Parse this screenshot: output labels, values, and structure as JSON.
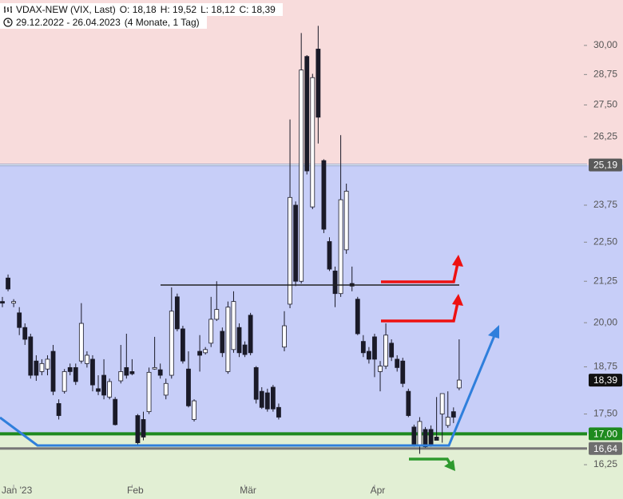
{
  "chart_data": {
    "type": "candlestick",
    "title": "VDAX-NEW (VIX, Last)",
    "quote": [
      "O: 18,18",
      "H: 19,52",
      "L: 18,12",
      "C: 18,39"
    ],
    "period": "29.12.2022 - 26.04.2023",
    "duration": "(4 Monate, 1 Tag)",
    "log_scale": true,
    "ylim": [
      15.82,
      32.06
    ],
    "yticks": [
      {
        "value": 16.25,
        "label": "16,25"
      },
      {
        "value": 17.5,
        "label": "17,50"
      },
      {
        "value": 18.75,
        "label": "18,75"
      },
      {
        "value": 20,
        "label": "20,00"
      },
      {
        "value": 21.25,
        "label": "21,25"
      },
      {
        "value": 22.5,
        "label": "22,50"
      },
      {
        "value": 23.75,
        "label": "23,75"
      },
      {
        "value": 26.25,
        "label": "26,25"
      },
      {
        "value": 27.5,
        "label": "27,50"
      },
      {
        "value": 28.75,
        "label": "28,75"
      },
      {
        "value": 30,
        "label": "30,00"
      }
    ],
    "levels": [
      {
        "value": 25.19,
        "label": "25,19",
        "color": "#5a5a5a",
        "line_color": "#8fa0c8"
      },
      {
        "value": 17.0,
        "label": "17,00",
        "color": "#1e8a1e",
        "line_color": "#1e8a1e"
      },
      {
        "value": 16.64,
        "label": "16,64",
        "color": "#6e6e6e",
        "line_color": "#777777"
      }
    ],
    "last_price": {
      "value": 18.39,
      "label": "18,39",
      "color": "#111111"
    },
    "zone_colors": [
      "#f8dcdc",
      "#c7cef8",
      "#e2efd4"
    ],
    "up_color": "#ffffff",
    "down_color": "#1a1a28",
    "categories": [
      null,
      null,
      "Jan '23",
      null,
      null,
      null,
      null,
      null,
      null,
      null,
      null,
      null,
      null,
      null,
      null,
      null,
      null,
      null,
      null,
      null,
      null,
      null,
      null,
      "Feb",
      null,
      null,
      null,
      null,
      null,
      null,
      null,
      null,
      null,
      null,
      null,
      null,
      null,
      null,
      null,
      null,
      null,
      null,
      null,
      "Mär",
      null,
      null,
      null,
      null,
      null,
      null,
      null,
      null,
      null,
      null,
      null,
      null,
      null,
      null,
      null,
      null,
      null,
      null,
      null,
      null,
      null,
      null,
      "Apr",
      null,
      null,
      null,
      null,
      null,
      null,
      null,
      null,
      null,
      null,
      null,
      null,
      null,
      null,
      null
    ],
    "open": [
      20.63,
      21.35,
      20.58,
      20.29,
      19.86,
      19.59,
      18.91,
      18.62,
      18.69,
      19.18,
      17.77,
      18.09,
      18.73,
      18.73,
      18.91,
      18.84,
      18.96,
      18.16,
      18.52,
      17.94,
      17.88,
      18.37,
      18.73,
      18.62,
      17.46,
      17.36,
      17.56,
      18.69,
      18.67,
      17.99,
      18.52,
      20.77,
      19.82,
      18.69,
      17.36,
      19.18,
      19.14,
      19.41,
      20.1,
      19.75,
      18.62,
      19.23,
      19.86,
      19.36,
      20.22,
      18.73,
      18.09,
      18.05,
      18.2,
      17.67,
      19.3,
      20.55,
      23.75,
      21.25,
      29.52,
      23.69,
      29.84,
      25.35,
      22.52,
      21.57,
      20.87,
      22.25,
      21.18,
      20.7,
      19.46,
      19.18,
      19.59,
      18.62,
      18.77,
      19.41,
      18.96,
      18.91,
      18.09,
      17.17,
      16.72,
      17.11,
      17.11,
      16.92,
      17.5,
      17.21,
      17.56,
      18.18
    ],
    "high": [
      20.77,
      21.46,
      20.7,
      20.46,
      19.98,
      19.68,
      19.07,
      18.96,
      19.07,
      19.36,
      17.88,
      18.69,
      18.84,
      18.84,
      20.58,
      19.18,
      19.07,
      18.52,
      18.96,
      18.43,
      17.94,
      19.36,
      19.68,
      18.96,
      17.5,
      17.56,
      18.73,
      19.59,
      18.84,
      18.43,
      21.06,
      20.87,
      19.91,
      19.18,
      17.88,
      19.64,
      19.3,
      20.77,
      21.25,
      19.86,
      20.63,
      20.94,
      19.98,
      19.46,
      20.29,
      18.77,
      18.2,
      18.16,
      18.26,
      17.77,
      20.34,
      26.92,
      23.88,
      30.55,
      29.58,
      28.78,
      30.87,
      25.4,
      22.66,
      21.71,
      26.31,
      24.51,
      21.71,
      20.77,
      19.64,
      19.3,
      19.68,
      18.91,
      19.98,
      19.52,
      19.07,
      19.0,
      18.16,
      17.23,
      17.42,
      17.17,
      17.21,
      17.94,
      18.03,
      18.09,
      17.67,
      19.52
    ],
    "low": [
      20.46,
      20.94,
      20.46,
      19.64,
      19.36,
      18.43,
      18.37,
      18.52,
      18.52,
      17.99,
      17.36,
      18.03,
      18.52,
      18.26,
      18.84,
      18.73,
      18.09,
      17.99,
      17.88,
      17.88,
      17.21,
      18.3,
      18.43,
      18.52,
      16.74,
      16.84,
      17.5,
      18.67,
      18.43,
      17.88,
      18.43,
      19.75,
      18.84,
      17.67,
      17.31,
      18.62,
      19.09,
      19.3,
      20.05,
      19.02,
      18.56,
      19.14,
      19.02,
      19.02,
      19.07,
      17.77,
      17.63,
      17.56,
      17.56,
      17.36,
      19.18,
      20.43,
      21.1,
      21.18,
      24.84,
      23.61,
      25.99,
      22.8,
      21.57,
      20.46,
      20.77,
      22.12,
      20.94,
      19.64,
      19.02,
      18.84,
      18.47,
      18.09,
      18.69,
      18.91,
      18.62,
      18.2,
      17.42,
      16.68,
      16.51,
      16.66,
      16.68,
      16.84,
      16.78,
      17.15,
      17.27,
      18.12
    ],
    "close": [
      20.58,
      21.01,
      20.63,
      19.86,
      19.52,
      18.52,
      18.52,
      18.84,
      18.96,
      18.09,
      17.46,
      18.62,
      18.62,
      18.35,
      19.98,
      19.07,
      18.26,
      18.09,
      17.99,
      18.35,
      17.23,
      18.62,
      18.52,
      18.56,
      16.78,
      16.92,
      18.6,
      18.73,
      18.52,
      18.3,
      20.34,
      19.82,
      18.91,
      17.71,
      17.84,
      19.07,
      19.23,
      20.1,
      20.39,
      19.14,
      20.46,
      20.63,
      19.14,
      19.09,
      19.14,
      17.88,
      17.67,
      17.63,
      17.63,
      17.42,
      19.91,
      24.02,
      21.25,
      28.94,
      24.97,
      28.62,
      27.01,
      22.93,
      21.63,
      20.87,
      23.94,
      24.24,
      21.1,
      19.68,
      19.14,
      18.96,
      18.96,
      18.77,
      19.64,
      19.02,
      18.73,
      18.3,
      17.46,
      16.74,
      17.31,
      16.68,
      16.74,
      16.84,
      18.03,
      17.42,
      17.42,
      18.39
    ]
  }
}
